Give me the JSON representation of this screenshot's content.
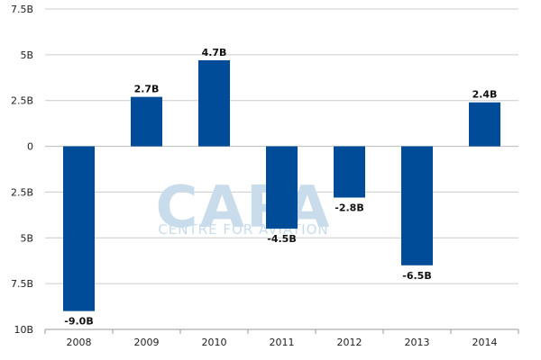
{
  "watermark": {
    "main": "CAPA",
    "sub": "CENTRE FOR AVIATION"
  },
  "colors": {
    "bar": "#004c99",
    "grid": "#cccccc",
    "axis": "#999999",
    "watermark": "#c9dcec"
  },
  "chart_data": {
    "type": "bar",
    "title": "",
    "xlabel": "",
    "ylabel": "",
    "categories": [
      "2008",
      "2009",
      "2010",
      "2011",
      "2012",
      "2013",
      "2014"
    ],
    "values": [
      -9.0,
      2.7,
      4.7,
      -4.5,
      -2.8,
      -6.5,
      2.4
    ],
    "data_labels": [
      "-9.0B",
      "2.7B",
      "4.7B",
      "-4.5B",
      "-2.8B",
      "-6.5B",
      "2.4B"
    ],
    "ylim": [
      -10,
      7.5
    ],
    "y_ticks": [
      7.5,
      5,
      2.5,
      0,
      -2.5,
      -5,
      -7.5,
      -10
    ],
    "y_tick_labels": [
      "7.5B",
      "5B",
      "2.5B",
      "0",
      "2.5B",
      "5B",
      "7.5B",
      "10B"
    ],
    "grid": true,
    "legend": "none"
  }
}
